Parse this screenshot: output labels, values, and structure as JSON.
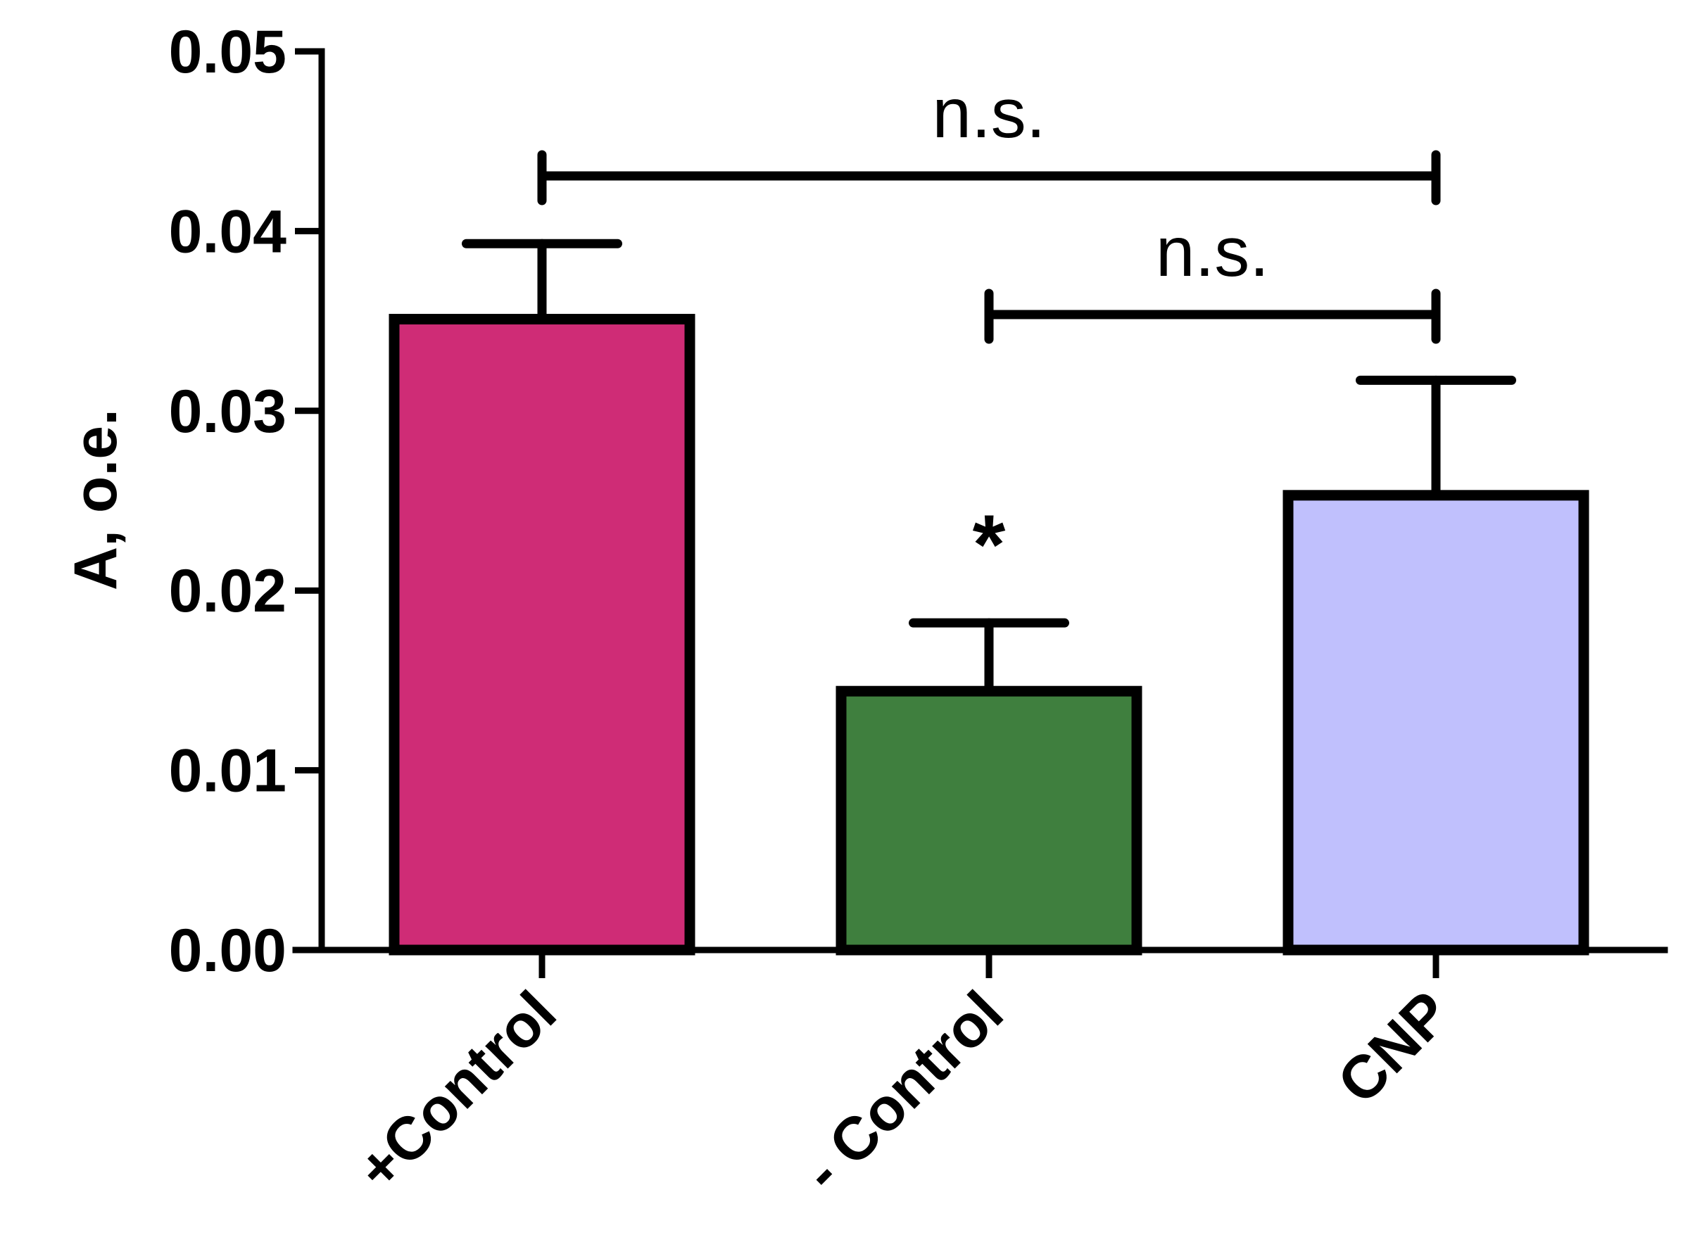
{
  "chart_data": {
    "type": "bar",
    "categories": [
      "+Control",
      "- Control",
      "CNP"
    ],
    "values": [
      0.0351,
      0.0144,
      0.0253
    ],
    "errors": [
      0.0042,
      0.0038,
      0.0064
    ],
    "colors": [
      "#cf2c76",
      "#3f7f3e",
      "#c0c0fd"
    ],
    "ylabel": "A, o.e.",
    "xlabel": "",
    "ylim": [
      0,
      0.05
    ],
    "yticks": [
      "0.00",
      "0.01",
      "0.02",
      "0.03",
      "0.04",
      "0.05"
    ],
    "grid": false,
    "annotations": [
      {
        "type": "bracket",
        "from": "+Control",
        "to": "CNP",
        "text": "n.s."
      },
      {
        "type": "bracket",
        "from": "- Control",
        "to": "CNP",
        "text": "n.s."
      },
      {
        "type": "marker",
        "category": "- Control",
        "text": "*"
      }
    ]
  }
}
